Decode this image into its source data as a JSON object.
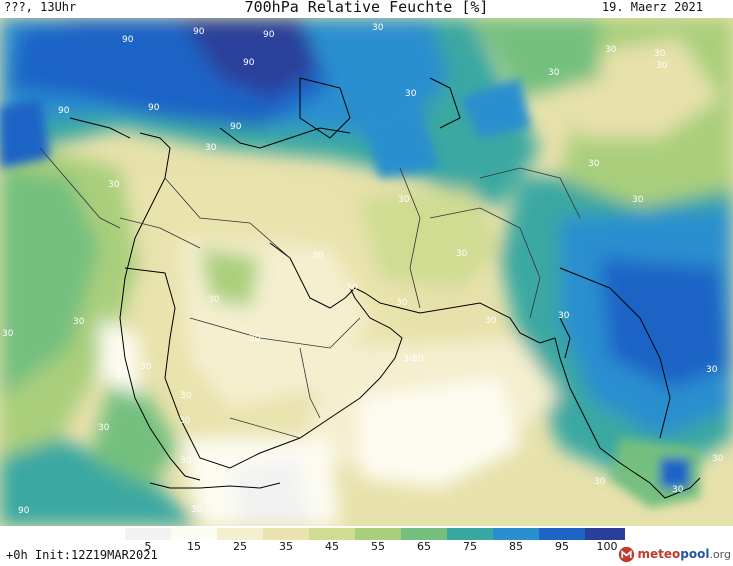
{
  "header": {
    "left_text": "???, 13Uhr",
    "title": "700hPa Relative Feuchte [%]",
    "date": "19. Maerz 2021"
  },
  "map": {
    "contour_labels": [
      "90",
      "90",
      "90",
      "90",
      "90",
      "90",
      "90",
      "90",
      "30",
      "30",
      "30",
      "30",
      "30",
      "30",
      "30",
      "30",
      "30",
      "30",
      "30",
      "30",
      "30",
      "30",
      "30",
      "30",
      "30",
      "30",
      "30",
      "30",
      "30",
      "30",
      "30",
      "30",
      "30",
      "30",
      "30",
      "30",
      "30",
      "30",
      "30",
      "30",
      "30",
      "30"
    ]
  },
  "legend": {
    "ticks": [
      "5",
      "15",
      "25",
      "35",
      "45",
      "55",
      "65",
      "75",
      "85",
      "95",
      "100"
    ],
    "colors": [
      "#f2f2f2",
      "#fdfcf2",
      "#f4efcf",
      "#e9e3ad",
      "#cfdc92",
      "#a9cf7b",
      "#75c07f",
      "#3aa8a2",
      "#2a8fcf",
      "#1f63c6",
      "#2a3f9a",
      "#331f6b"
    ]
  },
  "footer": {
    "init_text": "+0h Init:12Z19MAR2021",
    "logo": {
      "part1": "meteo",
      "part2": "pool",
      "part3": ".org"
    }
  }
}
